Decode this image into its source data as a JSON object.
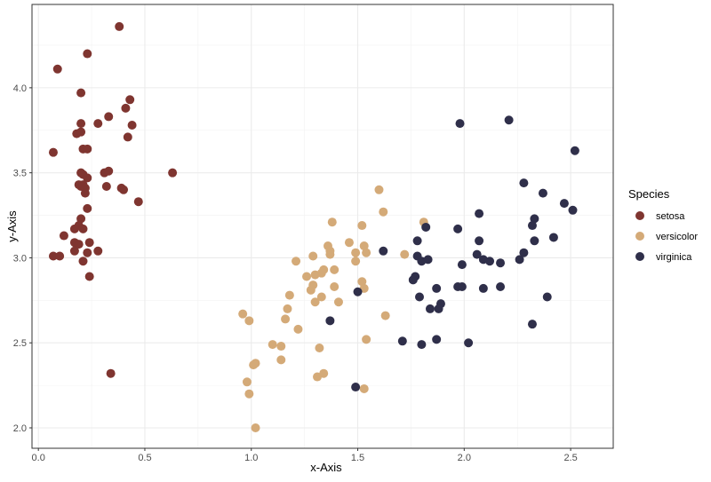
{
  "chart_data": {
    "type": "scatter",
    "xlabel": "x-Axis",
    "ylabel": "y-Axis",
    "xlim": [
      -0.03,
      2.7
    ],
    "ylim": [
      1.88,
      4.49
    ],
    "xticks": [
      "0.0",
      "0.5",
      "1.0",
      "1.5",
      "2.0",
      "2.5"
    ],
    "yticks": [
      "2.0",
      "2.5",
      "3.0",
      "3.5",
      "4.0"
    ],
    "grid": true,
    "legend": {
      "title": "Species",
      "placement": "right"
    },
    "series": [
      {
        "name": "setosa",
        "color": "#7f3530",
        "points": [
          [
            0.38,
            4.36
          ],
          [
            0.23,
            4.2
          ],
          [
            0.09,
            4.11
          ],
          [
            0.2,
            3.97
          ],
          [
            0.43,
            3.93
          ],
          [
            0.41,
            3.88
          ],
          [
            0.33,
            3.83
          ],
          [
            0.2,
            3.79
          ],
          [
            0.28,
            3.79
          ],
          [
            0.44,
            3.78
          ],
          [
            0.42,
            3.71
          ],
          [
            0.18,
            3.73
          ],
          [
            0.2,
            3.74
          ],
          [
            0.21,
            3.64
          ],
          [
            0.23,
            3.64
          ],
          [
            0.07,
            3.62
          ],
          [
            0.2,
            3.5
          ],
          [
            0.21,
            3.49
          ],
          [
            0.23,
            3.47
          ],
          [
            0.31,
            3.5
          ],
          [
            0.33,
            3.51
          ],
          [
            0.63,
            3.5
          ],
          [
            0.2,
            3.42
          ],
          [
            0.19,
            3.43
          ],
          [
            0.21,
            3.43
          ],
          [
            0.22,
            3.41
          ],
          [
            0.22,
            3.38
          ],
          [
            0.32,
            3.42
          ],
          [
            0.39,
            3.41
          ],
          [
            0.4,
            3.4
          ],
          [
            0.47,
            3.33
          ],
          [
            0.23,
            3.29
          ],
          [
            0.2,
            3.23
          ],
          [
            0.19,
            3.19
          ],
          [
            0.17,
            3.17
          ],
          [
            0.21,
            3.17
          ],
          [
            0.12,
            3.13
          ],
          [
            0.17,
            3.09
          ],
          [
            0.19,
            3.08
          ],
          [
            0.24,
            3.09
          ],
          [
            0.17,
            3.04
          ],
          [
            0.28,
            3.04
          ],
          [
            0.23,
            3.03
          ],
          [
            0.07,
            3.01
          ],
          [
            0.1,
            3.01
          ],
          [
            0.21,
            2.98
          ],
          [
            0.24,
            2.89
          ],
          [
            0.34,
            2.32
          ]
        ]
      },
      {
        "name": "versicolor",
        "color": "#d4aa78",
        "points": [
          [
            1.6,
            3.4
          ],
          [
            1.62,
            3.27
          ],
          [
            1.38,
            3.21
          ],
          [
            1.52,
            3.19
          ],
          [
            1.81,
            3.21
          ],
          [
            1.36,
            3.07
          ],
          [
            1.46,
            3.09
          ],
          [
            1.53,
            3.07
          ],
          [
            1.37,
            3.04
          ],
          [
            1.37,
            3.02
          ],
          [
            1.49,
            3.03
          ],
          [
            1.54,
            3.03
          ],
          [
            1.72,
            3.02
          ],
          [
            1.29,
            3.01
          ],
          [
            1.21,
            2.98
          ],
          [
            1.49,
            2.98
          ],
          [
            1.34,
            2.93
          ],
          [
            1.39,
            2.93
          ],
          [
            1.26,
            2.89
          ],
          [
            1.3,
            2.9
          ],
          [
            1.33,
            2.91
          ],
          [
            1.29,
            2.84
          ],
          [
            1.28,
            2.81
          ],
          [
            1.52,
            2.86
          ],
          [
            1.53,
            2.82
          ],
          [
            1.39,
            2.83
          ],
          [
            1.33,
            2.77
          ],
          [
            1.3,
            2.74
          ],
          [
            1.41,
            2.74
          ],
          [
            1.18,
            2.78
          ],
          [
            1.17,
            2.7
          ],
          [
            1.16,
            2.64
          ],
          [
            1.22,
            2.58
          ],
          [
            0.96,
            2.67
          ],
          [
            0.99,
            2.63
          ],
          [
            1.63,
            2.66
          ],
          [
            1.1,
            2.49
          ],
          [
            1.14,
            2.48
          ],
          [
            1.54,
            2.52
          ],
          [
            1.32,
            2.47
          ],
          [
            1.14,
            2.4
          ],
          [
            1.02,
            2.38
          ],
          [
            1.01,
            2.37
          ],
          [
            0.98,
            2.27
          ],
          [
            0.99,
            2.2
          ],
          [
            1.34,
            2.32
          ],
          [
            1.31,
            2.3
          ],
          [
            1.53,
            2.23
          ],
          [
            1.02,
            2.0
          ]
        ]
      },
      {
        "name": "virginica",
        "color": "#2f2f4a",
        "points": [
          [
            1.98,
            3.79
          ],
          [
            2.21,
            3.81
          ],
          [
            2.52,
            3.63
          ],
          [
            2.28,
            3.44
          ],
          [
            2.37,
            3.38
          ],
          [
            2.47,
            3.32
          ],
          [
            2.51,
            3.28
          ],
          [
            2.07,
            3.26
          ],
          [
            2.33,
            3.23
          ],
          [
            2.32,
            3.19
          ],
          [
            1.82,
            3.18
          ],
          [
            1.97,
            3.17
          ],
          [
            1.78,
            3.1
          ],
          [
            2.07,
            3.1
          ],
          [
            2.33,
            3.1
          ],
          [
            2.42,
            3.12
          ],
          [
            1.62,
            3.04
          ],
          [
            2.28,
            3.03
          ],
          [
            2.26,
            2.99
          ],
          [
            2.06,
            3.02
          ],
          [
            2.09,
            2.99
          ],
          [
            2.12,
            2.98
          ],
          [
            2.17,
            2.97
          ],
          [
            1.78,
            3.01
          ],
          [
            1.8,
            2.98
          ],
          [
            1.83,
            2.99
          ],
          [
            1.99,
            2.96
          ],
          [
            1.77,
            2.89
          ],
          [
            1.76,
            2.87
          ],
          [
            1.87,
            2.82
          ],
          [
            1.97,
            2.83
          ],
          [
            1.99,
            2.83
          ],
          [
            2.09,
            2.82
          ],
          [
            2.17,
            2.83
          ],
          [
            2.39,
            2.77
          ],
          [
            1.79,
            2.77
          ],
          [
            1.84,
            2.7
          ],
          [
            1.89,
            2.73
          ],
          [
            1.88,
            2.7
          ],
          [
            1.5,
            2.8
          ],
          [
            2.32,
            2.61
          ],
          [
            1.71,
            2.51
          ],
          [
            1.8,
            2.49
          ],
          [
            1.87,
            2.52
          ],
          [
            2.02,
            2.5
          ],
          [
            1.37,
            2.63
          ],
          [
            1.49,
            2.24
          ]
        ]
      }
    ]
  }
}
